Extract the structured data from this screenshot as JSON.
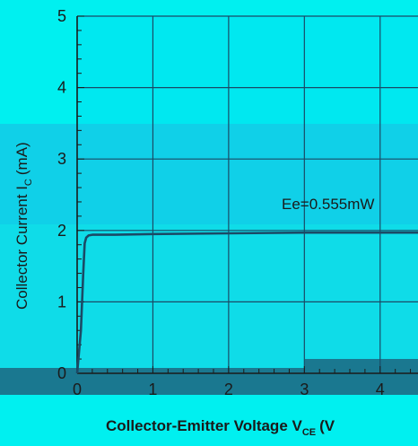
{
  "chart_data": {
    "type": "line",
    "title": "",
    "xlabel": "Collector-Emitter Voltage V",
    "xlabel_sub": "CE",
    "xlabel_suffix": "(V",
    "ylabel": "Collector Current I",
    "ylabel_sub": "C",
    "ylabel_suffix": "(mA)",
    "xlim": [
      0,
      4.5
    ],
    "ylim": [
      0,
      5
    ],
    "xticks": [
      0,
      1,
      2,
      3,
      4
    ],
    "yticks": [
      0,
      1,
      2,
      3,
      4,
      5
    ],
    "grid": true,
    "series": [
      {
        "name": "Ee=0.555mW",
        "x": [
          0,
          0.05,
          0.08,
          0.1,
          0.12,
          0.15,
          0.2,
          0.3,
          0.5,
          1.0,
          2.0,
          3.0,
          4.0,
          4.5
        ],
        "y": [
          0,
          0.6,
          1.4,
          1.82,
          1.9,
          1.93,
          1.94,
          1.94,
          1.94,
          1.95,
          1.96,
          1.97,
          1.97,
          1.97
        ]
      }
    ],
    "annotations": [
      {
        "text": "Ee=0.555mW",
        "x": 2.7,
        "y": 2.3
      }
    ]
  },
  "colors": {
    "background": "#00f0f0",
    "plot_background": "#00e8f0",
    "grid": "#1a4a66",
    "line": "#1b4a66"
  }
}
